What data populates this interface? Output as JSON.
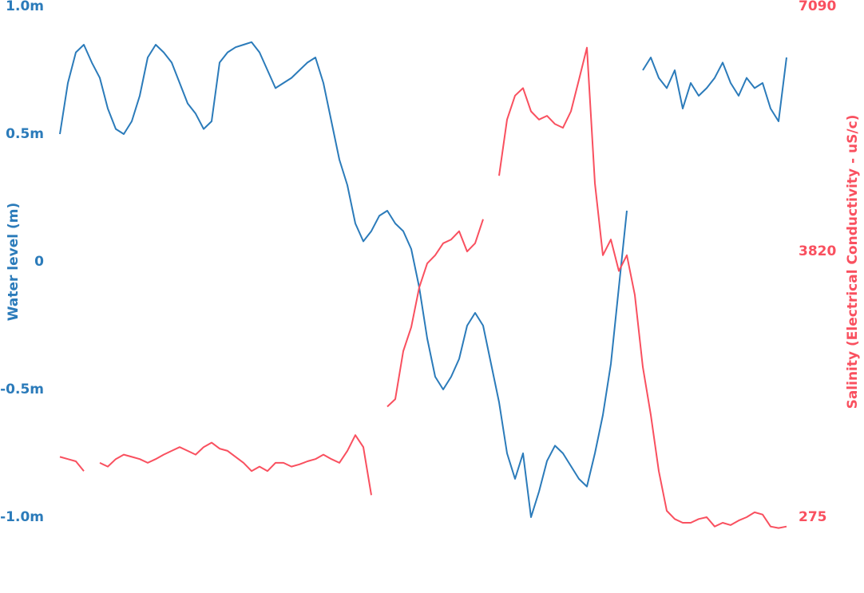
{
  "chart_data": {
    "type": "line",
    "y_label": "Water level (m)",
    "y2_label": "Salinity (Electrical Conductivity - uS/c)",
    "ylim": [
      -1,
      1
    ],
    "yticks": [
      {
        "value": 1,
        "label": "1.0m"
      },
      {
        "value": 0.5,
        "label": "0.5m"
      },
      0,
      {
        "value": -0.5,
        "label": "-0.5m"
      },
      {
        "value": -1,
        "label": "-1.0m"
      }
    ],
    "y2lim": [
      275,
      7090
    ],
    "y2ticks": [
      7090,
      3820,
      275
    ],
    "series": [
      {
        "color": "#2b7bba",
        "values": [
          0.5,
          0.7,
          0.82,
          0.85,
          0.78,
          0.72,
          0.6,
          0.52,
          0.5,
          0.55,
          0.65,
          0.8,
          0.85,
          0.82,
          0.78,
          0.7,
          0.62,
          0.58,
          0.52,
          0.55,
          0.78,
          0.82,
          0.84,
          0.85,
          0.86,
          0.82,
          0.75,
          0.68,
          0.7,
          0.72,
          0.75,
          0.78,
          0.8,
          0.7,
          0.55,
          0.4,
          0.3,
          0.15,
          0.08,
          0.12,
          0.18,
          0.2,
          0.15,
          0.12,
          0.05,
          -0.1,
          -0.3,
          -0.45,
          -0.5,
          -0.45,
          -0.38,
          -0.25,
          -0.2,
          -0.25,
          -0.4,
          -0.55,
          -0.75,
          -0.85,
          -0.75,
          -1.0,
          -0.9,
          -0.78,
          -0.72,
          -0.75,
          -0.8,
          -0.85,
          -0.88,
          -0.75,
          -0.6,
          -0.4,
          -0.1,
          0.2,
          null,
          0.75,
          0.8,
          0.72,
          0.68,
          0.75,
          0.6,
          0.7,
          0.65,
          0.68,
          0.72,
          0.78,
          0.7,
          0.65,
          0.72,
          0.68,
          0.7,
          0.6,
          0.55,
          0.8
        ]
      },
      {
        "color": "#f9505f",
        "axis": "y2",
        "values": [
          1080,
          1050,
          1020,
          890,
          null,
          1000,
          950,
          1050,
          1110,
          1080,
          1050,
          1000,
          1050,
          1110,
          1160,
          1210,
          1160,
          1110,
          1210,
          1270,
          1190,
          1160,
          1080,
          1000,
          890,
          950,
          890,
          1000,
          1000,
          950,
          980,
          1020,
          1050,
          1110,
          1050,
          1000,
          1160,
          1370,
          1210,
          570,
          null,
          1750,
          1850,
          2490,
          2810,
          3340,
          3660,
          3770,
          3930,
          3980,
          4090,
          3820,
          3930,
          4250,
          null,
          4830,
          5580,
          5900,
          6000,
          5690,
          5580,
          5630,
          5520,
          5470,
          5690,
          6110,
          6540,
          4730,
          3770,
          3980,
          3560,
          3770,
          3240,
          2280,
          1640,
          890,
          360,
          250,
          200,
          200,
          250,
          275,
          150,
          200,
          170,
          230,
          275,
          340,
          310,
          150,
          130,
          150
        ]
      }
    ]
  }
}
